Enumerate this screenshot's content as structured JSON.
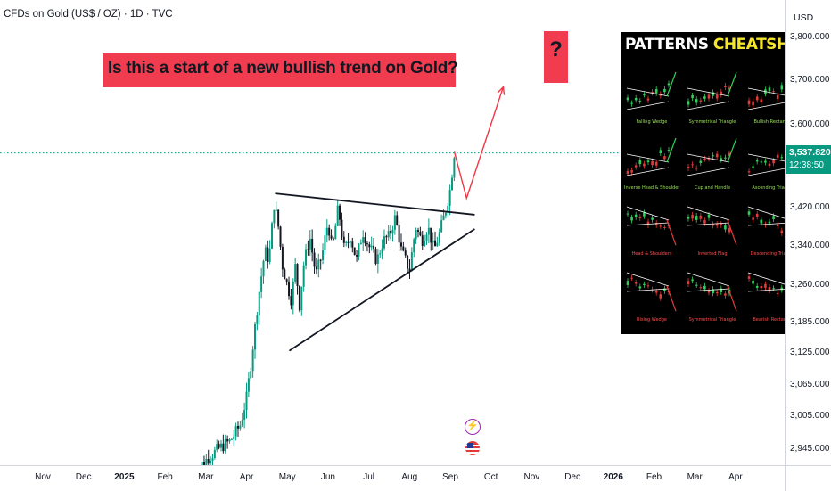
{
  "header": {
    "title": "CFDs on Gold (US$ / OZ) · 1D · TVC"
  },
  "annotations": {
    "question": "Is this a start of a new bullish trend on Gold?",
    "mark": "?"
  },
  "cheatsheet": {
    "title_main": "PATTERNS",
    "title_accent": "CHEATSHEET",
    "patterns": [
      {
        "label": "Falling Wedge",
        "bias": "bull"
      },
      {
        "label": "Symmetrical Triangle",
        "bias": "bull"
      },
      {
        "label": "Bullish Rectangle",
        "bias": "bull"
      },
      {
        "label": "Inverse Head & Shoulders",
        "bias": "bull"
      },
      {
        "label": "Cup and Handle",
        "bias": "bull"
      },
      {
        "label": "Ascending Triangle",
        "bias": "bull"
      },
      {
        "label": "Head & Shoulders",
        "bias": "bear"
      },
      {
        "label": "Inverted Flag",
        "bias": "bear"
      },
      {
        "label": "Descending Triangle",
        "bias": "bear"
      },
      {
        "label": "Rising Wedge",
        "bias": "bear"
      },
      {
        "label": "Symmetrical Triangle",
        "bias": "bear"
      },
      {
        "label": "Bearish Rectangle",
        "bias": "bear"
      }
    ]
  },
  "price_axis": {
    "currency": "USD",
    "last_price": "3,537.820",
    "countdown": "12:38:50"
  },
  "colors": {
    "up": "#089981",
    "down": "#131722",
    "accent_red": "#f03c4e",
    "arrow": "#f23645",
    "last_price_bg": "#089981",
    "last_price_line": "#089981",
    "bull_label": "#9be15d",
    "bear_label": "#ff4d4d"
  },
  "chart_data": {
    "type": "candlestick",
    "title": "CFDs on Gold (US$ / OZ) · 1D · TVC",
    "y_scale": "log",
    "ylim": [
      2900,
      3850
    ],
    "y_ticks": [
      {
        "value": 3800,
        "label": "3,800.000"
      },
      {
        "value": 3700,
        "label": "3,700.000"
      },
      {
        "value": 3600,
        "label": "3,600.000"
      },
      {
        "value": 3420,
        "label": "3,420.000"
      },
      {
        "value": 3340,
        "label": "3,340.000"
      },
      {
        "value": 3260,
        "label": "3,260.000"
      },
      {
        "value": 3185,
        "label": "3,185.000"
      },
      {
        "value": 3125,
        "label": "3,125.000"
      },
      {
        "value": 3065,
        "label": "3,065.000"
      },
      {
        "value": 3005,
        "label": "3,005.000"
      },
      {
        "value": 2945,
        "label": "2,945.000"
      }
    ],
    "x_ticks": [
      {
        "label": "Nov",
        "month": 0,
        "bold": false
      },
      {
        "label": "Dec",
        "month": 1,
        "bold": false
      },
      {
        "label": "2025",
        "month": 2,
        "bold": true
      },
      {
        "label": "Feb",
        "month": 3,
        "bold": false
      },
      {
        "label": "Mar",
        "month": 4,
        "bold": false
      },
      {
        "label": "Apr",
        "month": 5,
        "bold": false
      },
      {
        "label": "May",
        "month": 6,
        "bold": false
      },
      {
        "label": "Jun",
        "month": 7,
        "bold": false
      },
      {
        "label": "Jul",
        "month": 8,
        "bold": false
      },
      {
        "label": "Aug",
        "month": 9,
        "bold": false
      },
      {
        "label": "Sep",
        "month": 10,
        "bold": false
      },
      {
        "label": "Oct",
        "month": 11,
        "bold": false
      },
      {
        "label": "Nov",
        "month": 12,
        "bold": false
      },
      {
        "label": "Dec",
        "month": 13,
        "bold": false
      },
      {
        "label": "2026",
        "month": 14,
        "bold": true
      },
      {
        "label": "Feb",
        "month": 15,
        "bold": false
      },
      {
        "label": "Mar",
        "month": 16,
        "bold": false
      },
      {
        "label": "Apr",
        "month": 17,
        "bold": false
      }
    ],
    "last_price": 3537.82,
    "price_path": [
      [
        3.7,
        2900
      ],
      [
        4.0,
        2925
      ],
      [
        4.3,
        2945
      ],
      [
        4.6,
        2960
      ],
      [
        4.85,
        2990
      ],
      [
        5.0,
        3040
      ],
      [
        5.1,
        3100
      ],
      [
        5.2,
        3170
      ],
      [
        5.3,
        3240
      ],
      [
        5.45,
        3330
      ],
      [
        5.55,
        3310
      ],
      [
        5.68,
        3430
      ],
      [
        5.78,
        3380
      ],
      [
        5.88,
        3300
      ],
      [
        6.0,
        3260
      ],
      [
        6.1,
        3230
      ],
      [
        6.2,
        3300
      ],
      [
        6.3,
        3220
      ],
      [
        6.4,
        3300
      ],
      [
        6.55,
        3360
      ],
      [
        6.7,
        3280
      ],
      [
        6.85,
        3320
      ],
      [
        7.0,
        3390
      ],
      [
        7.1,
        3330
      ],
      [
        7.25,
        3420
      ],
      [
        7.4,
        3330
      ],
      [
        7.55,
        3360
      ],
      [
        7.7,
        3310
      ],
      [
        7.85,
        3370
      ],
      [
        8.0,
        3340
      ],
      [
        8.2,
        3310
      ],
      [
        8.35,
        3350
      ],
      [
        8.5,
        3360
      ],
      [
        8.65,
        3400
      ],
      [
        8.8,
        3330
      ],
      [
        9.0,
        3290
      ],
      [
        9.15,
        3380
      ],
      [
        9.3,
        3350
      ],
      [
        9.45,
        3380
      ],
      [
        9.6,
        3330
      ],
      [
        9.75,
        3370
      ],
      [
        9.9,
        3420
      ],
      [
        10.0,
        3460
      ],
      [
        10.1,
        3540
      ]
    ],
    "trendlines": [
      {
        "name": "upper",
        "from": [
          5.7,
          3450
        ],
        "to": [
          10.6,
          3405
        ]
      },
      {
        "name": "lower",
        "from": [
          6.05,
          3130
        ],
        "to": [
          10.6,
          3375
        ]
      }
    ],
    "projection": [
      [
        10.1,
        3540
      ],
      [
        10.4,
        3440
      ],
      [
        11.3,
        3685
      ]
    ]
  }
}
